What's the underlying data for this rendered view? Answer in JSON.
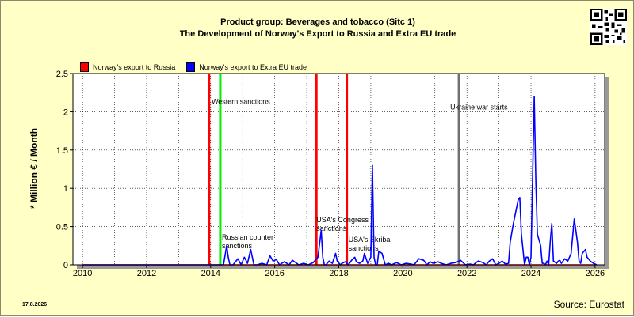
{
  "header": {
    "line1": "Product group: Beverages and tobacco (Sitc 1)",
    "line2": "The Development of Norway's Export to  Russia and Extra EU trade"
  },
  "footer": {
    "date": "17.8.2026",
    "source": "Source: Eurostat"
  },
  "colors": {
    "background": "#ffffc6",
    "plot_bg": "#ffffff",
    "russia": "#ff0000",
    "extra_eu": "#0000ff"
  },
  "chart_data": {
    "type": "line",
    "ylabel": "* Million € / Month",
    "xlabel": "",
    "xlim": [
      2009.7,
      2026.3
    ],
    "ylim": [
      0,
      2.5
    ],
    "x_ticks": [
      2010,
      2012,
      2014,
      2016,
      2018,
      2020,
      2022,
      2024,
      2026
    ],
    "y_ticks": [
      0,
      0.5,
      1,
      1.5,
      2,
      2.5
    ],
    "y_tick_labels": [
      "0",
      "0.5",
      "1",
      "1.5",
      "2",
      "2.5"
    ],
    "grid": true,
    "legend_position": "top-left",
    "legend": [
      {
        "name": "Norway's export to Russia",
        "color": "#ff0000"
      },
      {
        "name": "Norway's export to Extra EU trade",
        "color": "#0000ff"
      }
    ],
    "events": [
      {
        "x": 2013.95,
        "color": "#ff0000",
        "label": ""
      },
      {
        "x": 2014.3,
        "color": "#00ee00",
        "label": "Western sanctions",
        "label_y": 2.1
      },
      {
        "x": 2017.3,
        "color": "#ff0000",
        "label": ""
      },
      {
        "x": 2018.25,
        "color": "#ff0000",
        "label": ""
      },
      {
        "x": 2021.75,
        "color": "#707070",
        "label": "Ukraine war starts",
        "label_y": 2.03
      }
    ],
    "annotations": [
      {
        "x": 2014.35,
        "y": 0.33,
        "lines": [
          "Russian counter",
          "sanctions"
        ]
      },
      {
        "x": 2017.3,
        "y": 0.56,
        "lines": [
          "USA's Congress",
          "sanctions"
        ]
      },
      {
        "x": 2018.3,
        "y": 0.3,
        "lines": [
          "USA's Skribal",
          "sanctions"
        ]
      }
    ],
    "series": [
      {
        "name": "Norway's export to Russia",
        "color": "#ff0000",
        "x": [
          2010.0,
          2026.0
        ],
        "values": [
          0,
          0
        ]
      },
      {
        "name": "Norway's export to Extra EU trade",
        "color": "#0000ff",
        "x": [
          2010.0,
          2014.4,
          2014.5,
          2014.55,
          2014.6,
          2014.7,
          2014.85,
          2014.95,
          2015.05,
          2015.15,
          2015.25,
          2015.3,
          2015.35,
          2015.45,
          2015.6,
          2015.75,
          2015.85,
          2015.95,
          2016.05,
          2016.15,
          2016.3,
          2016.45,
          2016.55,
          2016.75,
          2016.9,
          2017.05,
          2017.2,
          2017.35,
          2017.45,
          2017.5,
          2017.55,
          2017.6,
          2017.7,
          2017.8,
          2017.9,
          2017.95,
          2018.05,
          2018.1,
          2018.2,
          2018.3,
          2018.4,
          2018.5,
          2018.55,
          2018.65,
          2018.75,
          2018.8,
          2018.9,
          2019.0,
          2019.05,
          2019.1,
          2019.15,
          2019.2,
          2019.25,
          2019.35,
          2019.45,
          2019.55,
          2019.65,
          2019.8,
          2019.95,
          2020.1,
          2020.25,
          2020.35,
          2020.5,
          2020.65,
          2020.75,
          2020.85,
          2020.95,
          2021.1,
          2021.2,
          2021.35,
          2021.5,
          2021.65,
          2021.8,
          2021.95,
          2022.1,
          2022.2,
          2022.35,
          2022.5,
          2022.6,
          2022.7,
          2022.8,
          2022.9,
          2023.0,
          2023.1,
          2023.2,
          2023.3,
          2023.35,
          2023.45,
          2023.6,
          2023.65,
          2023.7,
          2023.75,
          2023.8,
          2023.85,
          2023.9,
          2023.95,
          2024.0,
          2024.1,
          2024.15,
          2024.2,
          2024.3,
          2024.35,
          2024.4,
          2024.45,
          2024.5,
          2024.55,
          2024.6,
          2024.65,
          2024.7,
          2024.8,
          2024.85,
          2024.9,
          2024.95,
          2025.05,
          2025.15,
          2025.25,
          2025.35,
          2025.45,
          2025.5,
          2025.55,
          2025.6,
          2025.7,
          2025.75,
          2025.85,
          2025.95,
          2026.05
        ],
        "values": [
          0,
          0,
          0.25,
          0.1,
          0,
          0,
          0.08,
          0,
          0.1,
          0.02,
          0.2,
          0.1,
          0,
          0,
          0.02,
          0,
          0.12,
          0.05,
          0.07,
          0,
          0.04,
          0,
          0.06,
          0,
          0.02,
          0,
          0.03,
          0.1,
          0.45,
          0.1,
          0,
          0,
          0.05,
          0.02,
          0.15,
          0.05,
          0,
          0.02,
          0.04,
          0,
          0.06,
          0.1,
          0.04,
          0.02,
          0.05,
          0.15,
          0.02,
          0.1,
          1.3,
          0.1,
          0,
          0,
          0.18,
          0.15,
          0,
          0.02,
          0,
          0.03,
          0,
          0.02,
          0.01,
          0,
          0.08,
          0.06,
          0,
          0.04,
          0.02,
          0.04,
          0.02,
          0,
          0.02,
          0.03,
          0.06,
          0,
          0.01,
          0,
          0.05,
          0.03,
          0,
          0.05,
          0.08,
          0,
          0.02,
          0.05,
          0.01,
          0.02,
          0.3,
          0.54,
          0.85,
          0.88,
          0.4,
          0.2,
          0,
          0.1,
          0.1,
          0,
          0.1,
          2.2,
          1.1,
          0.4,
          0.25,
          0.02,
          0.02,
          0,
          0.05,
          0,
          0.3,
          0.54,
          0.05,
          0.02,
          0.05,
          0.06,
          0.02,
          0.08,
          0.05,
          0.15,
          0.6,
          0.3,
          0.05,
          0.02,
          0.15,
          0.2,
          0.1,
          0.05,
          0.02,
          0
        ]
      }
    ]
  }
}
